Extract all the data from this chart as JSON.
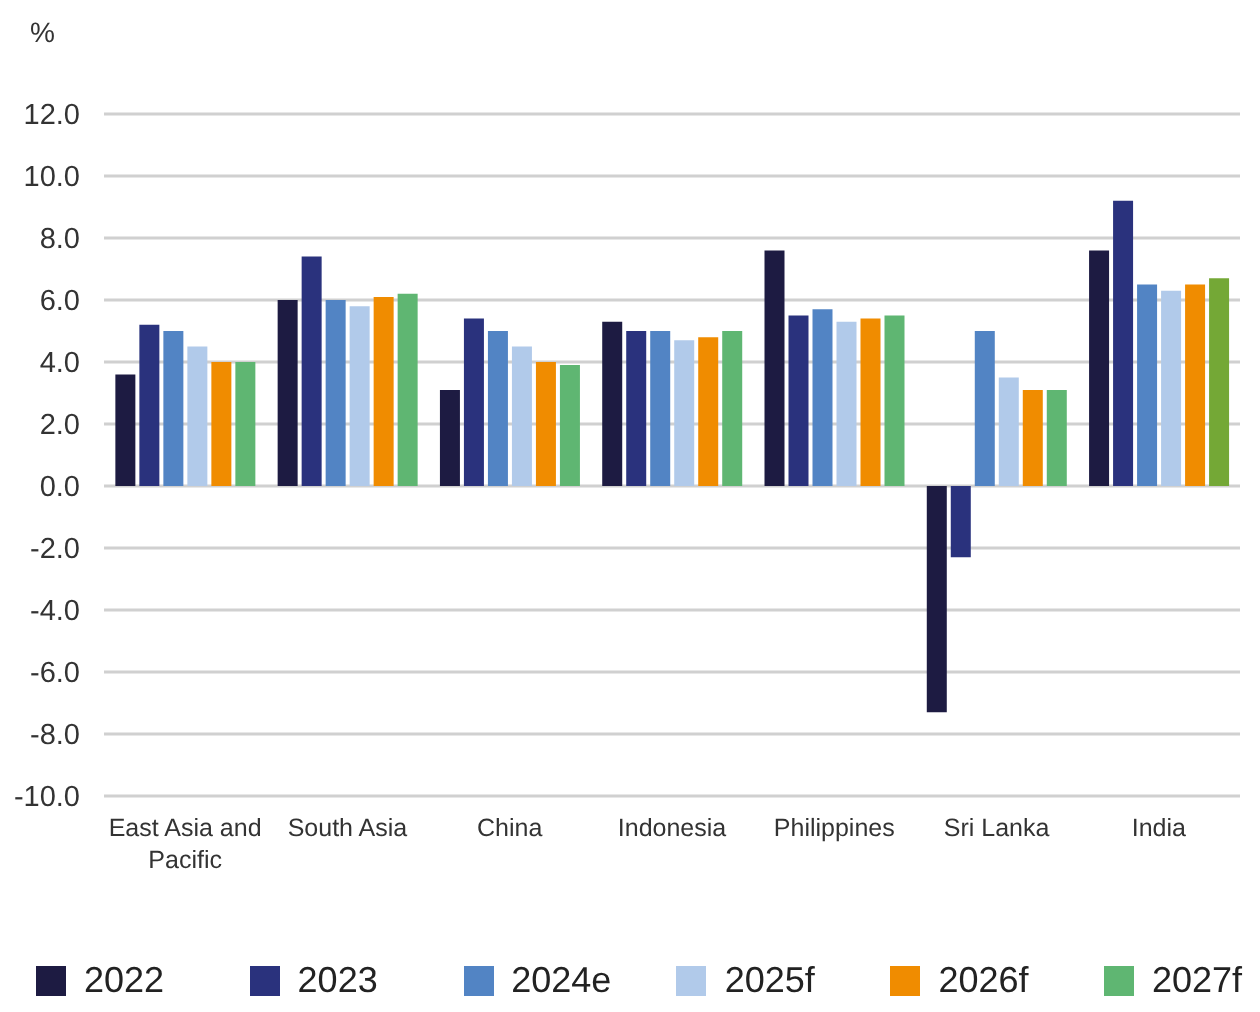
{
  "chart_data": {
    "type": "bar",
    "ylabel": "%",
    "categories": [
      "East Asia and Pacific",
      "South Asia",
      "China",
      "Indonesia",
      "Philippines",
      "Sri Lanka",
      "India"
    ],
    "series": [
      {
        "name": "2022",
        "color": "#1d1b42",
        "values": [
          3.6,
          6.0,
          3.1,
          5.3,
          7.6,
          -7.3,
          7.6
        ]
      },
      {
        "name": "2023",
        "color": "#2a327d",
        "values": [
          5.2,
          7.4,
          5.4,
          5.0,
          5.5,
          -2.3,
          9.2
        ]
      },
      {
        "name": "2024e",
        "color": "#5284c4",
        "values": [
          5.0,
          6.0,
          5.0,
          5.0,
          5.7,
          5.0,
          6.5
        ]
      },
      {
        "name": "2025f",
        "color": "#b1caea",
        "values": [
          4.5,
          5.8,
          4.5,
          4.7,
          5.3,
          3.5,
          6.3
        ]
      },
      {
        "name": "2026f",
        "color": "#f08c00",
        "values": [
          4.0,
          6.1,
          4.0,
          4.8,
          5.4,
          3.1,
          6.5
        ]
      },
      {
        "name": "2027f",
        "color": "#5fb672",
        "colors": [
          "#5fb672",
          "#5fb672",
          "#5fb672",
          "#5fb672",
          "#5fb672",
          "#5fb672",
          "#74a836"
        ],
        "values": [
          4.0,
          6.2,
          3.9,
          5.0,
          5.5,
          3.1,
          6.7
        ]
      }
    ],
    "ylim": [
      -10,
      12
    ],
    "yticks": [
      {
        "value": -10,
        "label": "-10.0"
      },
      {
        "value": -8,
        "label": "-8.0"
      },
      {
        "value": -6,
        "label": "-6.0"
      },
      {
        "value": -4,
        "label": "-4.0"
      },
      {
        "value": -2,
        "label": "-2.0"
      },
      {
        "value": 0,
        "label": "0.0"
      },
      {
        "value": 2,
        "label": "2.0"
      },
      {
        "value": 4,
        "label": "4.0"
      },
      {
        "value": 6,
        "label": "6.0"
      },
      {
        "value": 8,
        "label": "8.0"
      },
      {
        "value": 10,
        "label": "10.0"
      },
      {
        "value": 12,
        "label": "12.0"
      }
    ],
    "grid": "y",
    "legend": "bottom"
  }
}
